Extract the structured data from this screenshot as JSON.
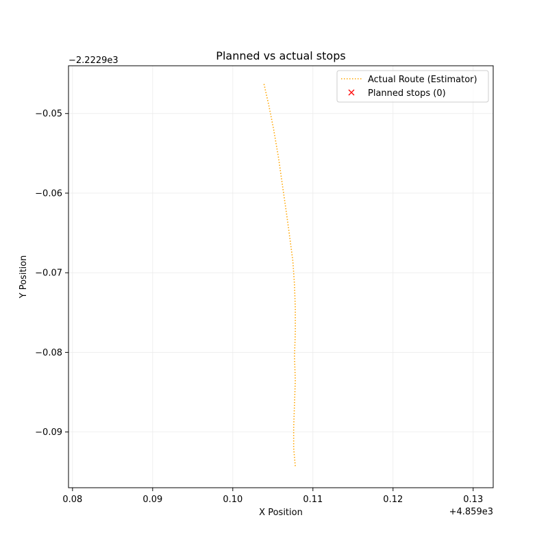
{
  "chart_data": {
    "type": "line",
    "title": "Planned vs actual stops",
    "xlabel": "X Position",
    "ylabel": "Y Position",
    "x_offset_text": "+4.859e3",
    "y_offset_text": "−2.2229e3",
    "xlim": [
      0.0795,
      0.1325
    ],
    "ylim": [
      -0.097,
      -0.044
    ],
    "x_ticks": [
      0.08,
      0.09,
      0.1,
      0.11,
      0.12,
      0.13
    ],
    "x_tick_labels": [
      "0.08",
      "0.09",
      "0.10",
      "0.11",
      "0.12",
      "0.13"
    ],
    "y_ticks": [
      -0.05,
      -0.06,
      -0.07,
      -0.08,
      -0.09
    ],
    "y_tick_labels": [
      "−0.05",
      "−0.06",
      "−0.07",
      "−0.08",
      "−0.09"
    ],
    "grid": true,
    "legend_position": "top-right",
    "series": [
      {
        "name": "Actual Route (Estimator)",
        "kind": "line",
        "style": "dotted",
        "color": "#ffa500",
        "x": [
          0.1039,
          0.1045,
          0.1051,
          0.1057,
          0.1062,
          0.1067,
          0.1071,
          0.1075,
          0.1077,
          0.1078,
          0.1078,
          0.1077,
          0.1078,
          0.1077,
          0.1076,
          0.1076,
          0.1078
        ],
        "y": [
          -0.0463,
          -0.049,
          -0.052,
          -0.0555,
          -0.059,
          -0.0625,
          -0.0655,
          -0.0685,
          -0.0715,
          -0.0745,
          -0.0775,
          -0.0805,
          -0.0835,
          -0.0865,
          -0.0895,
          -0.092,
          -0.0943
        ]
      },
      {
        "name": "Planned stops (0)",
        "kind": "scatter",
        "marker": "x",
        "color": "#ff0000",
        "x": [],
        "y": []
      }
    ]
  }
}
